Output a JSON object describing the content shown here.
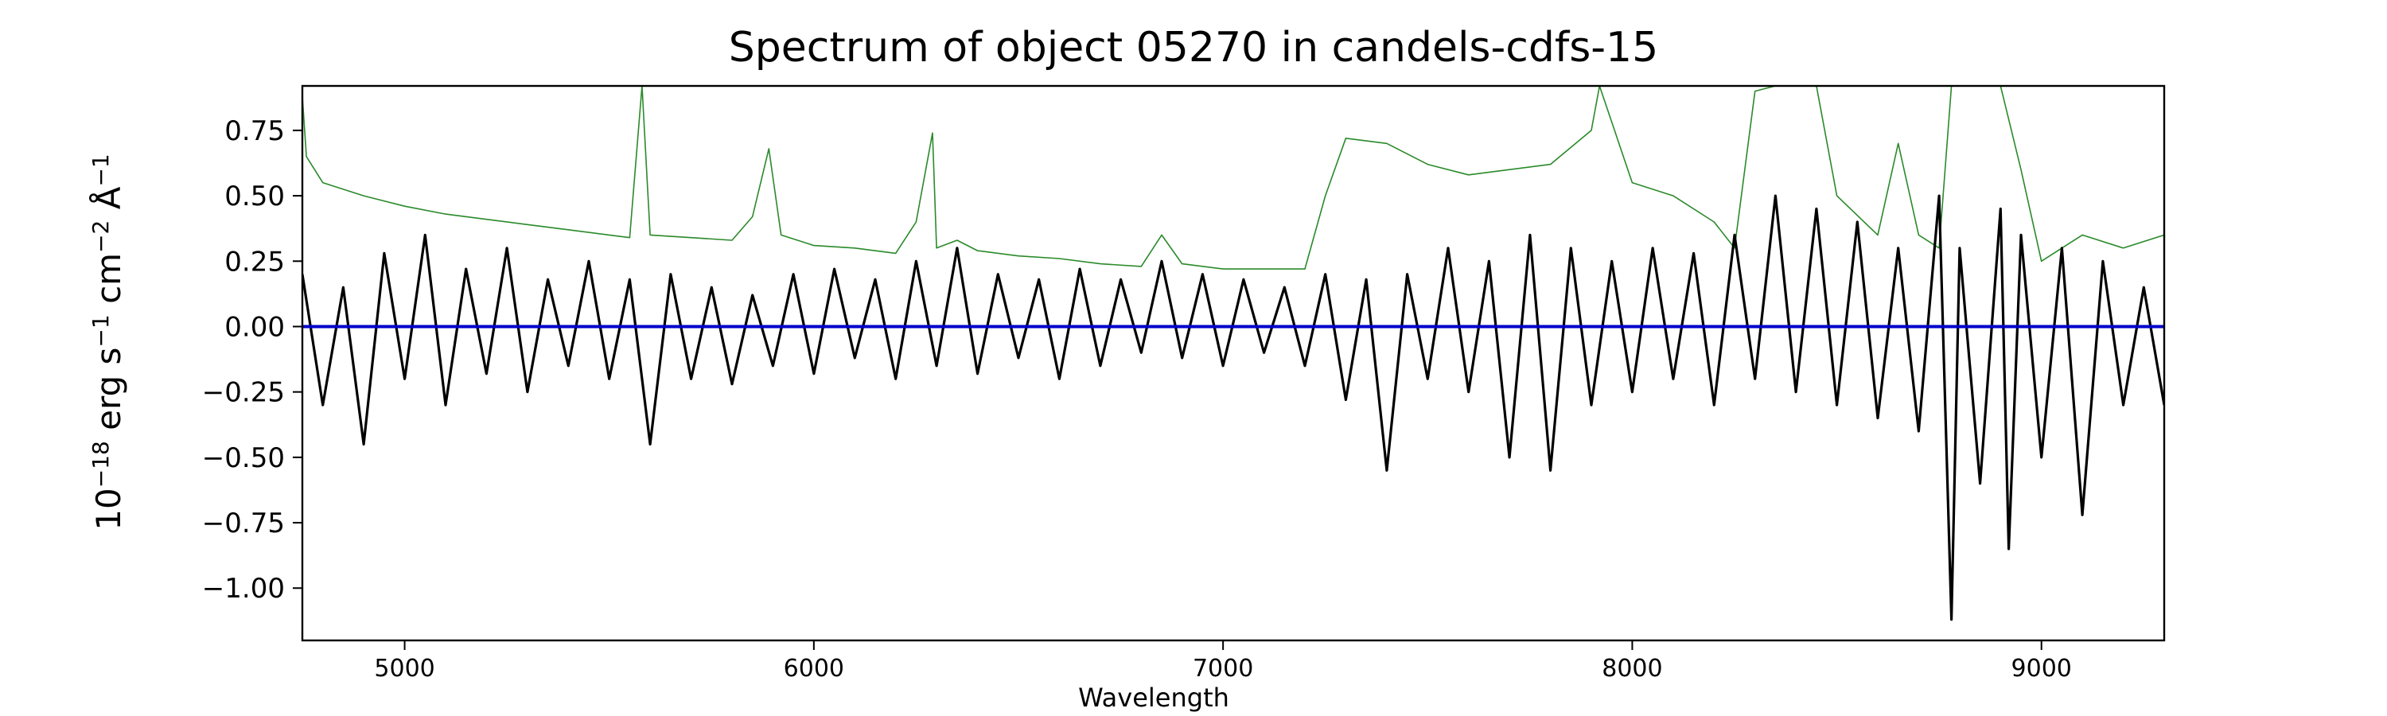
{
  "chart_data": {
    "type": "line",
    "title": "Spectrum of object 05270 in candels-cdfs-15",
    "xlabel": "Wavelength",
    "ylabel": {
      "base": "10",
      "exp": "−18",
      "rest": " erg s",
      "exp2": "−1",
      "rest2": " cm",
      "exp3": "−2",
      "rest3": " Å",
      "exp4": "−1"
    },
    "xlim": [
      4750,
      9300
    ],
    "ylim": [
      -1.2,
      0.92
    ],
    "x_ticks": [
      5000,
      6000,
      7000,
      8000,
      9000
    ],
    "x_tick_labels": [
      "5000",
      "6000",
      "7000",
      "8000",
      "9000"
    ],
    "y_ticks": [
      0.75,
      0.5,
      0.25,
      0.0,
      -0.25,
      -0.5,
      -0.75,
      -1.0
    ],
    "y_tick_labels": [
      "0.75",
      "0.50",
      "0.25",
      "0.00",
      "−0.25",
      "−0.50",
      "−0.75",
      "−1.00"
    ],
    "grid": false,
    "series": [
      {
        "role": "flux",
        "color": "#000000",
        "x": [
          4750,
          4800,
          4850,
          4900,
          4950,
          5000,
          5050,
          5100,
          5150,
          5200,
          5250,
          5300,
          5350,
          5400,
          5450,
          5500,
          5550,
          5600,
          5650,
          5700,
          5750,
          5800,
          5850,
          5900,
          5950,
          6000,
          6050,
          6100,
          6150,
          6200,
          6250,
          6300,
          6350,
          6400,
          6450,
          6500,
          6550,
          6600,
          6650,
          6700,
          6750,
          6800,
          6850,
          6900,
          6950,
          7000,
          7050,
          7100,
          7150,
          7200,
          7250,
          7300,
          7350,
          7400,
          7450,
          7500,
          7550,
          7600,
          7650,
          7700,
          7750,
          7800,
          7850,
          7900,
          7950,
          8000,
          8050,
          8100,
          8150,
          8200,
          8250,
          8300,
          8350,
          8400,
          8450,
          8500,
          8550,
          8600,
          8650,
          8700,
          8750,
          8780,
          8800,
          8850,
          8900,
          8920,
          8950,
          9000,
          9050,
          9100,
          9150,
          9200,
          9250,
          9300
        ],
        "y": [
          0.2,
          -0.3,
          0.15,
          -0.45,
          0.28,
          -0.2,
          0.35,
          -0.3,
          0.22,
          -0.18,
          0.3,
          -0.25,
          0.18,
          -0.15,
          0.25,
          -0.2,
          0.18,
          -0.45,
          0.2,
          -0.2,
          0.15,
          -0.22,
          0.12,
          -0.15,
          0.2,
          -0.18,
          0.22,
          -0.12,
          0.18,
          -0.2,
          0.25,
          -0.15,
          0.3,
          -0.18,
          0.2,
          -0.12,
          0.18,
          -0.2,
          0.22,
          -0.15,
          0.18,
          -0.1,
          0.25,
          -0.12,
          0.2,
          -0.15,
          0.18,
          -0.1,
          0.15,
          -0.15,
          0.2,
          -0.28,
          0.18,
          -0.55,
          0.2,
          -0.2,
          0.3,
          -0.25,
          0.25,
          -0.5,
          0.35,
          -0.55,
          0.3,
          -0.3,
          0.25,
          -0.25,
          0.3,
          -0.2,
          0.28,
          -0.3,
          0.35,
          -0.2,
          0.5,
          -0.25,
          0.45,
          -0.3,
          0.4,
          -0.35,
          0.3,
          -0.4,
          0.5,
          -1.12,
          0.3,
          -0.6,
          0.45,
          -0.85,
          0.35,
          -0.5,
          0.3,
          -0.72,
          0.25,
          -0.3,
          0.15,
          -0.3
        ]
      },
      {
        "role": "error",
        "color": "#2a8a2a",
        "x": [
          4750,
          4760,
          4800,
          4900,
          5000,
          5100,
          5200,
          5300,
          5400,
          5500,
          5550,
          5580,
          5600,
          5700,
          5800,
          5850,
          5890,
          5920,
          6000,
          6100,
          6200,
          6250,
          6290,
          6300,
          6350,
          6400,
          6500,
          6600,
          6700,
          6800,
          6850,
          6900,
          7000,
          7100,
          7200,
          7250,
          7300,
          7400,
          7500,
          7600,
          7700,
          7800,
          7900,
          7920,
          8000,
          8100,
          8200,
          8250,
          8300,
          8350,
          8400,
          8450,
          8500,
          8600,
          8650,
          8700,
          8750,
          8780,
          8800,
          8850,
          8900,
          8950,
          9000,
          9050,
          9100,
          9200,
          9300
        ],
        "y": [
          0.88,
          0.65,
          0.55,
          0.5,
          0.46,
          0.43,
          0.41,
          0.39,
          0.37,
          0.35,
          0.34,
          0.92,
          0.35,
          0.34,
          0.33,
          0.42,
          0.68,
          0.35,
          0.31,
          0.3,
          0.28,
          0.4,
          0.74,
          0.3,
          0.33,
          0.29,
          0.27,
          0.26,
          0.24,
          0.23,
          0.35,
          0.24,
          0.22,
          0.22,
          0.22,
          0.5,
          0.72,
          0.7,
          0.62,
          0.58,
          0.6,
          0.62,
          0.75,
          0.92,
          0.55,
          0.5,
          0.4,
          0.3,
          0.9,
          0.92,
          0.92,
          0.92,
          0.5,
          0.35,
          0.7,
          0.35,
          0.3,
          0.92,
          0.92,
          0.92,
          0.92,
          0.6,
          0.25,
          0.3,
          0.35,
          0.3,
          0.35
        ]
      },
      {
        "role": "model",
        "color": "#0000cc",
        "x": [
          4750,
          9300
        ],
        "y": [
          0.0,
          0.0
        ]
      }
    ]
  }
}
